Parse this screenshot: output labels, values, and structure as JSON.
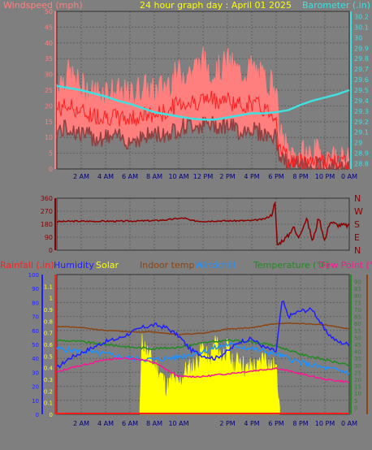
{
  "header": {
    "left_label": "Windspeed (mph)",
    "title": "24 hour graph day : April 01 2025",
    "right_label": "Barometer (.in)"
  },
  "colors": {
    "background": "#7f7f7f",
    "grid": "#5f5f5f",
    "wind_fill": "#ff7f7f",
    "wind_avg": "#ff2020",
    "wind_dark": "#904040",
    "barometer": "#40e0e0",
    "direction": "#8b0000",
    "rain": "#ff2020",
    "humidity": "#2020ff",
    "solar": "#ffff00",
    "indoor_temp": "#8b4513",
    "windchill": "#1e90ff",
    "temperature": "#228b22",
    "dew_point": "#ff1493",
    "title_yellow": "#ffff00"
  },
  "chart_data": [
    {
      "type": "line",
      "name": "wind-barometer",
      "xlabels": [
        "2 AM",
        "4 AM",
        "6 AM",
        "8 AM",
        "10 AM",
        "12 PM",
        "2 PM",
        "4 PM",
        "6 PM",
        "8 PM",
        "10 PM",
        "0 AM"
      ],
      "x_range": [
        0,
        24
      ],
      "left_axis": {
        "label": "Windspeed (mph)",
        "range": [
          0,
          50
        ],
        "ticks": [
          0,
          5,
          10,
          15,
          20,
          25,
          30,
          35,
          40,
          45,
          50
        ]
      },
      "right_axis": {
        "label": "Barometer (.in)",
        "range": [
          28.75,
          30.25
        ],
        "ticks": [
          "28.8",
          "28.9",
          "29",
          "29.1",
          "29.2",
          "29.3",
          "29.4",
          "29.5",
          "29.6",
          "29.7",
          "29.8",
          "29.9",
          "30",
          "30.1",
          "30.2"
        ]
      },
      "series": [
        {
          "key": "gust",
          "x": [
            0,
            1,
            2,
            3,
            4,
            5,
            6,
            7,
            8,
            9,
            10,
            11,
            12,
            13,
            14,
            15,
            16,
            17,
            18,
            18.2,
            19,
            20,
            21,
            22,
            23,
            24
          ],
          "y": [
            27,
            30,
            26,
            24,
            25,
            24,
            23,
            26,
            24,
            27,
            30,
            31,
            34,
            30,
            34,
            30,
            32,
            28,
            27,
            12,
            5,
            4,
            5,
            4,
            3,
            2
          ]
        },
        {
          "key": "average",
          "x": [
            0,
            1,
            2,
            3,
            4,
            5,
            6,
            7,
            8,
            9,
            10,
            11,
            12,
            13,
            14,
            15,
            16,
            17,
            18,
            18.2,
            19,
            20,
            21,
            22,
            23,
            24
          ],
          "y": [
            19,
            20,
            18,
            17,
            17,
            16,
            16,
            17,
            17,
            18,
            21,
            21,
            22,
            22,
            22,
            20,
            21,
            19,
            17,
            8,
            3,
            2,
            3,
            2,
            2,
            1
          ]
        },
        {
          "key": "low",
          "x": [
            0,
            1,
            2,
            3,
            4,
            5,
            6,
            7,
            8,
            9,
            10,
            11,
            12,
            13,
            14,
            15,
            16,
            17,
            18,
            18.2,
            19,
            20,
            21,
            22,
            23,
            24
          ],
          "y": [
            12,
            13,
            11,
            10,
            10,
            10,
            9,
            10,
            11,
            11,
            13,
            14,
            14,
            14,
            14,
            12,
            13,
            11,
            10,
            5,
            1,
            1,
            1,
            1,
            0,
            0
          ]
        },
        {
          "key": "barometer",
          "x": [
            0,
            1,
            2,
            3,
            4,
            5,
            6,
            7,
            8,
            9,
            10,
            11,
            12,
            13,
            14,
            15,
            16,
            17,
            18,
            19,
            20,
            21,
            22,
            23,
            24
          ],
          "y": [
            29.54,
            29.52,
            29.5,
            29.47,
            29.44,
            29.4,
            29.37,
            29.33,
            29.29,
            29.27,
            29.25,
            29.23,
            29.22,
            29.22,
            29.24,
            29.26,
            29.28,
            29.28,
            29.29,
            29.31,
            29.36,
            29.4,
            29.43,
            29.46,
            29.5
          ]
        }
      ]
    },
    {
      "type": "line",
      "name": "wind-direction",
      "x_range": [
        0,
        24
      ],
      "left_axis": {
        "range": [
          0,
          360
        ],
        "ticks": [
          0,
          90,
          180,
          270,
          360
        ]
      },
      "right_labels": [
        "N",
        "W",
        "S",
        "E",
        "N"
      ],
      "series": [
        {
          "key": "direction",
          "x": [
            0,
            1,
            2,
            3,
            4,
            5,
            6,
            7,
            8,
            9,
            10,
            10.5,
            11,
            12,
            13,
            14,
            15,
            16,
            17,
            17.6,
            17.9,
            18.1,
            18.4,
            19,
            19.4,
            19.8,
            20.5,
            21,
            21.5,
            22,
            22.4,
            23,
            24
          ],
          "y": [
            198,
            200,
            201,
            200,
            201,
            200,
            202,
            203,
            205,
            210,
            220,
            222,
            205,
            200,
            203,
            203,
            204,
            205,
            215,
            240,
            330,
            30,
            60,
            100,
            165,
            85,
            220,
            60,
            230,
            60,
            200,
            175,
            170
          ]
        }
      ]
    },
    {
      "type": "line",
      "name": "environment",
      "xlabels": [
        "2 AM",
        "4 AM",
        "6 AM",
        "8 AM",
        "10 AM",
        "2 PM",
        "4 PM",
        "6 PM",
        "8 PM",
        "10 PM",
        "0 AM"
      ],
      "x_range": [
        0,
        24
      ],
      "legend": [
        "Rainfall (.in)",
        "Humidity",
        "Solar",
        "Indoor temp",
        "Windchill",
        "Temperature (°F)",
        "Dew Point (°F)"
      ],
      "left_axis_pct": {
        "range": [
          0,
          100
        ],
        "ticks": [
          0,
          10,
          20,
          30,
          40,
          50,
          60,
          70,
          80,
          90,
          100
        ]
      },
      "left_axis_rain": {
        "range": [
          0,
          1.2
        ],
        "ticks": [
          "0",
          "0.1",
          "0.2",
          "0.3",
          "0.4",
          "0.5",
          "0.6",
          "0.7",
          "0.8",
          "0.9",
          "1",
          "1.1"
        ]
      },
      "right_axis_temp": {
        "range": [
          -5,
          95
        ],
        "ticks": [
          0,
          5,
          10,
          15,
          20,
          25,
          30,
          35,
          40,
          45,
          50,
          55,
          60,
          65,
          70,
          75,
          80,
          85,
          90
        ]
      },
      "series": [
        {
          "key": "humidity",
          "x": [
            0,
            1,
            2,
            3,
            4,
            5,
            6,
            7,
            8,
            9,
            10,
            11,
            12,
            13,
            14,
            15,
            16,
            17,
            18,
            18.5,
            19,
            20,
            21,
            22,
            23,
            24
          ],
          "y": [
            33,
            40,
            44,
            48,
            52,
            54,
            58,
            62,
            64,
            62,
            56,
            46,
            42,
            40,
            45,
            52,
            54,
            48,
            45,
            82,
            70,
            74,
            75,
            60,
            52,
            50
          ]
        },
        {
          "key": "indoor_temp",
          "x": [
            0,
            2,
            4,
            6,
            8,
            10,
            12,
            14,
            16,
            18,
            20,
            22,
            24
          ],
          "y": [
            58,
            57,
            55,
            54,
            54,
            52,
            53,
            56,
            57,
            60,
            60,
            59,
            56
          ]
        },
        {
          "key": "temperature",
          "x": [
            0,
            2,
            4,
            6,
            8,
            10,
            12,
            14,
            16,
            18,
            20,
            22,
            24
          ],
          "y": [
            48,
            47,
            45,
            43,
            42,
            43,
            46,
            48,
            47,
            44,
            38,
            34,
            30
          ]
        },
        {
          "key": "windchill",
          "x": [
            0,
            2,
            4,
            6,
            8,
            10,
            12,
            14,
            16,
            18,
            20,
            22,
            24
          ],
          "y": [
            42,
            40,
            38,
            35,
            34,
            36,
            40,
            45,
            42,
            38,
            32,
            28,
            25
          ]
        },
        {
          "key": "dew_point",
          "x": [
            0,
            1,
            2,
            3,
            4,
            5,
            6,
            7,
            8,
            9,
            10,
            12,
            14,
            16,
            18,
            20,
            22,
            24
          ],
          "y": [
            25,
            28,
            30,
            32,
            34,
            35,
            35,
            34,
            32,
            27,
            22,
            22,
            24,
            26,
            28,
            24,
            20,
            18
          ]
        },
        {
          "key": "solar",
          "x": [
            6.8,
            7,
            7.5,
            8,
            8.5,
            9,
            9.5,
            10,
            10.5,
            11,
            11.5,
            12,
            12.5,
            13,
            13.5,
            14,
            14.5,
            15,
            15.5,
            16,
            16.5,
            17,
            17.5,
            18,
            18.3
          ],
          "y": [
            0,
            48,
            38,
            30,
            25,
            14,
            20,
            16,
            26,
            28,
            32,
            44,
            30,
            48,
            36,
            42,
            28,
            36,
            26,
            30,
            28,
            38,
            30,
            28,
            0
          ]
        },
        {
          "key": "rainfall",
          "x": [
            0,
            24
          ],
          "y": [
            0,
            0
          ]
        }
      ]
    }
  ]
}
